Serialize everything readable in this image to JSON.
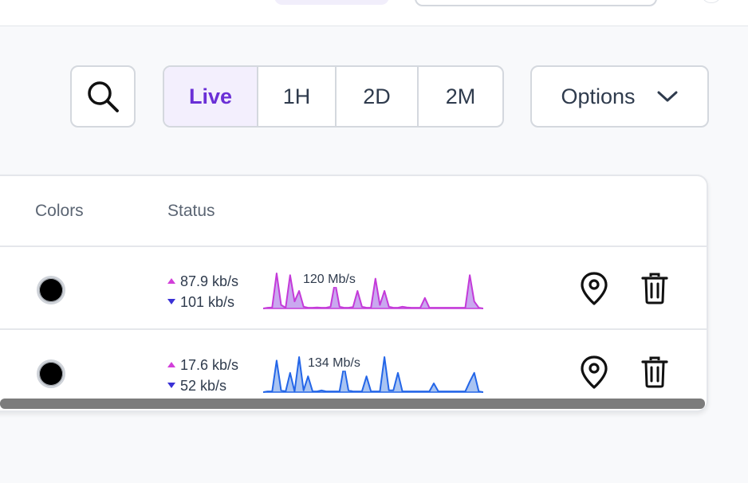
{
  "toolbar": {
    "ranges": [
      "Live",
      "1H",
      "2D",
      "2M"
    ],
    "active_range": "Live",
    "options_label": "Options"
  },
  "table": {
    "columns": [
      "Colors",
      "Status"
    ],
    "rows": [
      {
        "color": "#000000",
        "upload": "87.9 kb/s",
        "download": "101 kb/s",
        "peak_label": "120 Mb/s",
        "spark_color": "#c43ad9",
        "spark_fill": "#c9a8ef",
        "spark_levels": [
          0,
          0.02,
          0.03,
          1,
          0.1,
          0.02,
          0.95,
          0.2,
          0.5,
          0.05,
          0.02,
          0.02,
          0.03,
          0.02,
          0.02,
          0.05,
          0.75,
          0.05,
          0.02,
          0.02,
          0.04,
          0.5,
          0.05,
          0.02,
          0.02,
          0.85,
          0.1,
          0.5,
          0.05,
          0.02,
          0.02,
          0.05,
          0.03,
          0.02,
          0.02,
          0.02,
          0.3,
          0.02,
          0.02,
          0.02,
          0.02,
          0.02,
          0.02,
          0.02,
          0.02,
          0.02,
          0.95,
          0.2,
          0.02,
          0
        ]
      },
      {
        "color": "#000000",
        "upload": "17.6 kb/s",
        "download": "52 kb/s",
        "peak_label": "134 Mb/s",
        "spark_color": "#2466e8",
        "spark_fill": "#a9c4f2",
        "spark_levels": [
          0,
          0.02,
          0.02,
          0.9,
          0.05,
          0.02,
          0.55,
          0.02,
          1,
          0.05,
          0.45,
          0.02,
          0.02,
          0.05,
          0.02,
          0.02,
          0.02,
          0.02,
          0.75,
          0.05,
          0.02,
          0.02,
          0.02,
          0.45,
          0.02,
          0.02,
          0.02,
          1,
          0.05,
          0.05,
          0.55,
          0.02,
          0.02,
          0.02,
          0.02,
          0.02,
          0.02,
          0.02,
          0.25,
          0.02,
          0.02,
          0.02,
          0.02,
          0.02,
          0.02,
          0.02,
          0.3,
          0.55,
          0.02,
          0
        ]
      }
    ]
  },
  "icons": {
    "search": "search-icon",
    "options_chevron": "chevron-down-icon",
    "location": "map-pin-icon",
    "delete": "trash-icon"
  }
}
